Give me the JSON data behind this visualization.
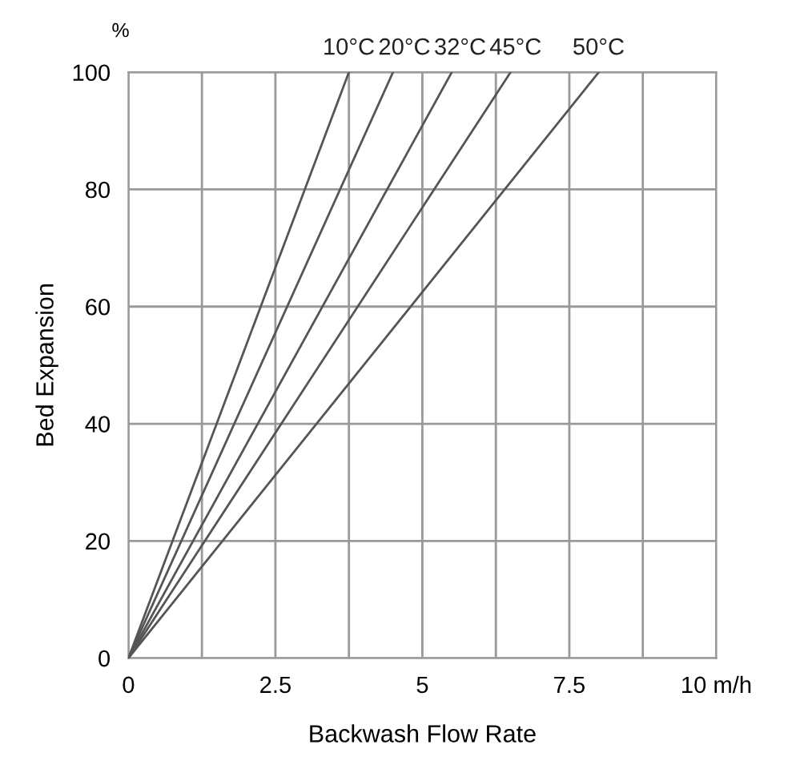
{
  "chart_data": {
    "type": "line",
    "xlabel": "Backwash Flow Rate",
    "ylabel": "Bed Expansion",
    "annotations": [
      "%"
    ],
    "xlim": [
      0,
      10
    ],
    "ylim": [
      0,
      100
    ],
    "xticks": [
      0,
      {
        "value": 1.25,
        "label": null
      },
      2.5,
      {
        "value": 3.75,
        "label": null
      },
      5,
      {
        "value": 6.25,
        "label": null
      },
      7.5,
      {
        "value": 8.75,
        "label": null
      },
      {
        "value": 10,
        "label": "10 m/h"
      }
    ],
    "yticks": [
      0,
      20,
      40,
      60,
      80,
      100
    ],
    "grid": true,
    "legend": false,
    "marker": "none",
    "line_style": "solid",
    "series": [
      {
        "name": "10°C",
        "color": "#555555",
        "x": [
          0,
          3.75
        ],
        "values": [
          0,
          100
        ]
      },
      {
        "name": "20°C",
        "color": "#555555",
        "x": [
          0,
          4.5
        ],
        "values": [
          0,
          100
        ]
      },
      {
        "name": "32°C",
        "color": "#555555",
        "x": [
          0,
          5.5
        ],
        "values": [
          0,
          100
        ]
      },
      {
        "name": "45°C",
        "color": "#555555",
        "x": [
          0,
          6.5
        ],
        "values": [
          0,
          100
        ]
      },
      {
        "name": "50°C",
        "color": "#555555",
        "x": [
          0,
          8.0
        ],
        "values": [
          0,
          100
        ]
      }
    ]
  }
}
